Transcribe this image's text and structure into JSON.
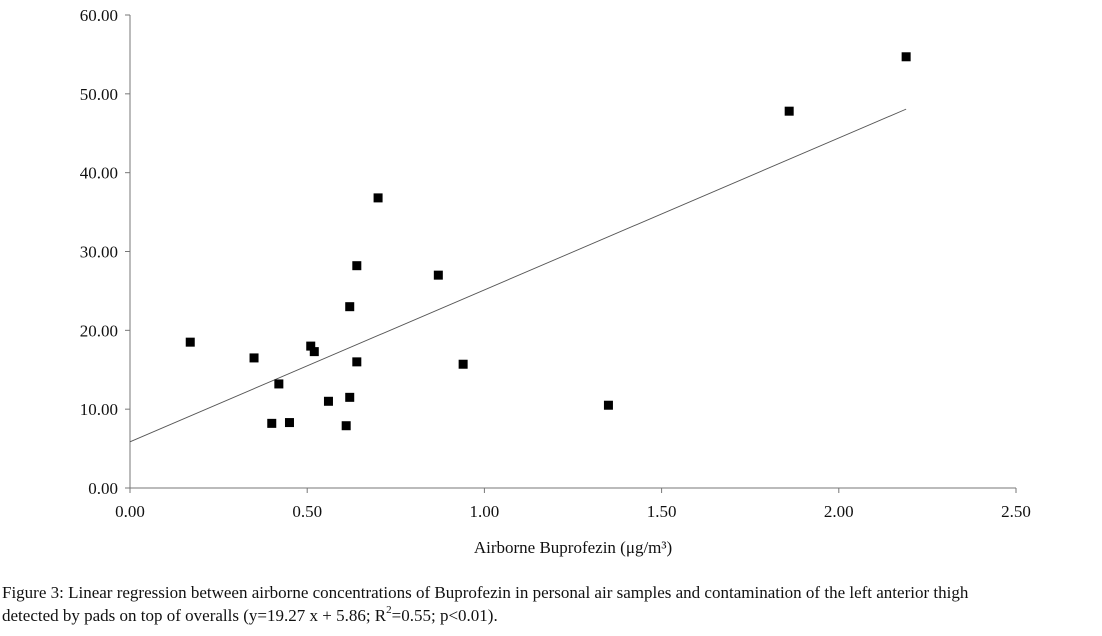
{
  "chart_data": {
    "type": "scatter",
    "xlabel": "Airborne Buprofezin (μg/m³)",
    "ylabel": "",
    "xlim": [
      0,
      2.5
    ],
    "ylim": [
      0,
      60
    ],
    "x_ticks": [
      "0.00",
      "0.50",
      "1.00",
      "1.50",
      "2.00",
      "2.50"
    ],
    "y_ticks": [
      "0.00",
      "10.00",
      "20.00",
      "30.00",
      "40.00",
      "50.00",
      "60.00"
    ],
    "grid": false,
    "legend": "none",
    "marker": "square",
    "marker_color": "#000000",
    "points": [
      {
        "x": 0.17,
        "y": 18.5
      },
      {
        "x": 0.35,
        "y": 16.5
      },
      {
        "x": 0.4,
        "y": 8.2
      },
      {
        "x": 0.42,
        "y": 13.2
      },
      {
        "x": 0.45,
        "y": 8.3
      },
      {
        "x": 0.51,
        "y": 18.0
      },
      {
        "x": 0.52,
        "y": 17.3
      },
      {
        "x": 0.56,
        "y": 11.0
      },
      {
        "x": 0.61,
        "y": 7.9
      },
      {
        "x": 0.62,
        "y": 23.0
      },
      {
        "x": 0.62,
        "y": 11.5
      },
      {
        "x": 0.64,
        "y": 28.2
      },
      {
        "x": 0.64,
        "y": 16.0
      },
      {
        "x": 0.7,
        "y": 36.8
      },
      {
        "x": 0.87,
        "y": 27.0
      },
      {
        "x": 0.94,
        "y": 15.7
      },
      {
        "x": 1.35,
        "y": 10.5
      },
      {
        "x": 1.86,
        "y": 47.8
      },
      {
        "x": 2.19,
        "y": 54.7
      }
    ],
    "trendline": {
      "slope": 19.27,
      "intercept": 5.86,
      "x_range": [
        0,
        2.19
      ],
      "color": "#555555"
    }
  },
  "caption": {
    "label": "Figure 3:",
    "line1": " Linear regression between airborne concentrations of Buprofezin in personal air samples and contamination of the left anterior thigh",
    "line2_before": "detected by pads on top of overalls (y=19.27 x + 5.86; R",
    "line2_sup": "2",
    "line2_after": "=0.55; p<0.01)."
  }
}
